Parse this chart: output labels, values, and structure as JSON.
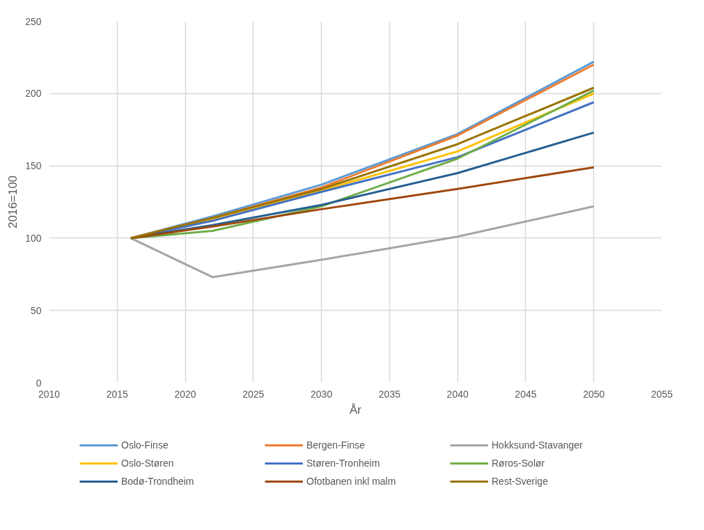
{
  "chart_data": {
    "type": "line",
    "xlabel": "År",
    "ylabel": "2016=100",
    "x": [
      2016,
      2022,
      2030,
      2040,
      2050
    ],
    "xlim": [
      2010,
      2055
    ],
    "xticks": [
      2010,
      2015,
      2020,
      2025,
      2030,
      2035,
      2040,
      2045,
      2050,
      2055
    ],
    "ylim": [
      0,
      250
    ],
    "yticks": [
      0,
      50,
      100,
      150,
      200,
      250
    ],
    "grid": true,
    "legend": "bottom",
    "marker": "none",
    "line_style": "solid",
    "series": [
      {
        "name": "Oslo-Finse",
        "color": "#5b9bd5",
        "values": [
          100,
          115,
          137,
          172,
          222
        ]
      },
      {
        "name": "Bergen-Finse",
        "color": "#ed7d31",
        "values": [
          100,
          114,
          135,
          171,
          220
        ]
      },
      {
        "name": "Hokksund-Stavanger",
        "color": "#a5a5a5",
        "values": [
          100,
          73,
          85,
          101,
          122
        ]
      },
      {
        "name": "Oslo-Støren",
        "color": "#ffc000",
        "values": [
          100,
          113,
          133,
          160,
          200
        ]
      },
      {
        "name": "Støren-Tronheim",
        "color": "#4472c4",
        "values": [
          100,
          112,
          132,
          156,
          194
        ]
      },
      {
        "name": "Røros-Solør",
        "color": "#70ad47",
        "values": [
          100,
          105,
          122,
          155,
          202
        ]
      },
      {
        "name": "Bodø-Trondheim",
        "color": "#255e91",
        "values": [
          100,
          109,
          123,
          145,
          173
        ]
      },
      {
        "name": "Ofotbanen inkl malm",
        "color": "#9e480e",
        "values": [
          100,
          108,
          120,
          134,
          149
        ]
      },
      {
        "name": "Rest-Sverige",
        "color": "#997300",
        "values": [
          100,
          114,
          134,
          165,
          204
        ]
      }
    ]
  }
}
